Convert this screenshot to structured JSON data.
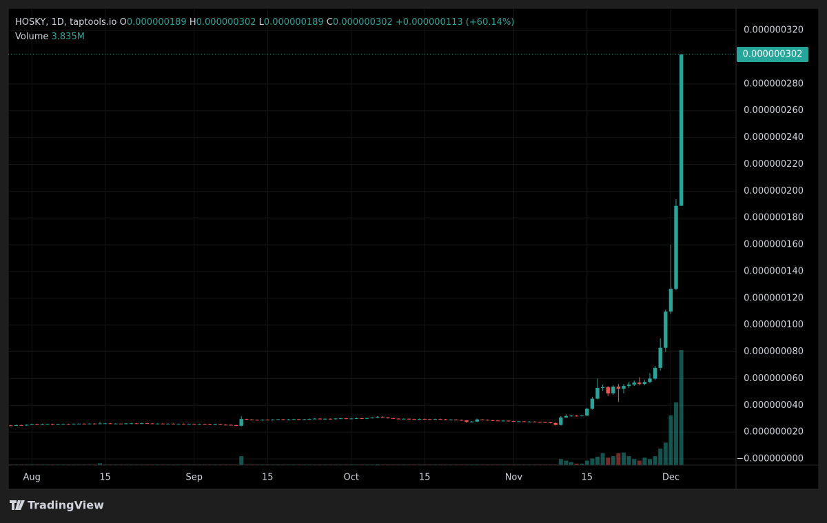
{
  "chart_data": {
    "type": "candlestick",
    "legend": {
      "symbol": "HOSKY, 1D, taptools.io",
      "o_key": "O",
      "o": "0.000000189",
      "h_key": "H",
      "h": "0.000000302",
      "l_key": "L",
      "l": "0.000000189",
      "c_key": "C",
      "c": "0.000000302",
      "change": "+0.000000113 (+60.14%)",
      "volume_key": "Volume",
      "volume": "3.835M"
    },
    "last_price_label": "0.000000302",
    "brand": "TradingView",
    "up_color": "#26a69a",
    "down_color": "#ef5350",
    "grid": true,
    "ylim": [
      -4.6e-09,
      3.365e-07
    ],
    "yticks": [
      {
        "value": 0,
        "label": "−0.000000000"
      },
      {
        "value": 2e-08,
        "label": "0.000000020"
      },
      {
        "value": 4e-08,
        "label": "0.000000040"
      },
      {
        "value": 6e-08,
        "label": "0.000000060"
      },
      {
        "value": 8e-08,
        "label": "0.000000080"
      },
      {
        "value": 1e-07,
        "label": "0.000000100"
      },
      {
        "value": 1.2e-07,
        "label": "0.000000120"
      },
      {
        "value": 1.4e-07,
        "label": "0.000000140"
      },
      {
        "value": 1.6e-07,
        "label": "0.000000160"
      },
      {
        "value": 1.8e-07,
        "label": "0.000000180"
      },
      {
        "value": 2e-07,
        "label": "0.000000200"
      },
      {
        "value": 2.2e-07,
        "label": "0.000000220"
      },
      {
        "value": 2.4e-07,
        "label": "0.000000240"
      },
      {
        "value": 2.6e-07,
        "label": "0.000000260"
      },
      {
        "value": 2.8e-07,
        "label": "0.000000280"
      },
      {
        "value": 3.2e-07,
        "label": "0.000000320"
      }
    ],
    "xticks": [
      {
        "value": "Aug 1",
        "label": "Aug"
      },
      {
        "value": "Aug 15",
        "label": "15"
      },
      {
        "value": "Sep 1",
        "label": "Sep"
      },
      {
        "value": "Sep 15",
        "label": "15"
      },
      {
        "value": "Oct 1",
        "label": "Oct"
      },
      {
        "value": "Oct 15",
        "label": "15"
      },
      {
        "value": "Nov 1",
        "label": "Nov"
      },
      {
        "value": "Nov 15",
        "label": "15"
      },
      {
        "value": "Dec 1",
        "label": "Dec"
      }
    ],
    "x": [
      "Jul 28",
      "Jul 29",
      "Jul 30",
      "Jul 31",
      "Aug 1",
      "Aug 2",
      "Aug 3",
      "Aug 4",
      "Aug 5",
      "Aug 6",
      "Aug 7",
      "Aug 8",
      "Aug 9",
      "Aug 10",
      "Aug 11",
      "Aug 12",
      "Aug 13",
      "Aug 14",
      "Aug 15",
      "Aug 16",
      "Aug 17",
      "Aug 18",
      "Aug 19",
      "Aug 20",
      "Aug 21",
      "Aug 22",
      "Aug 23",
      "Aug 24",
      "Aug 25",
      "Aug 26",
      "Aug 27",
      "Aug 28",
      "Aug 29",
      "Aug 30",
      "Aug 31",
      "Sep 1",
      "Sep 2",
      "Sep 3",
      "Sep 4",
      "Sep 5",
      "Sep 6",
      "Sep 7",
      "Sep 8",
      "Sep 9",
      "Sep 10",
      "Sep 11",
      "Sep 12",
      "Sep 13",
      "Sep 14",
      "Sep 15",
      "Sep 16",
      "Sep 17",
      "Sep 18",
      "Sep 19",
      "Sep 20",
      "Sep 21",
      "Sep 22",
      "Sep 23",
      "Sep 24",
      "Sep 25",
      "Sep 26",
      "Sep 27",
      "Sep 28",
      "Sep 29",
      "Sep 30",
      "Oct 1",
      "Oct 2",
      "Oct 3",
      "Oct 4",
      "Oct 5",
      "Oct 6",
      "Oct 7",
      "Oct 8",
      "Oct 9",
      "Oct 10",
      "Oct 11",
      "Oct 12",
      "Oct 13",
      "Oct 14",
      "Oct 15",
      "Oct 16",
      "Oct 17",
      "Oct 18",
      "Oct 19",
      "Oct 20",
      "Oct 21",
      "Oct 22",
      "Oct 23",
      "Oct 24",
      "Oct 25",
      "Oct 26",
      "Oct 27",
      "Oct 28",
      "Oct 29",
      "Oct 30",
      "Oct 31",
      "Nov 1",
      "Nov 2",
      "Nov 3",
      "Nov 4",
      "Nov 5",
      "Nov 6",
      "Nov 7",
      "Nov 8",
      "Nov 9",
      "Nov 10",
      "Nov 11",
      "Nov 12",
      "Nov 13",
      "Nov 14",
      "Nov 15",
      "Nov 16",
      "Nov 17",
      "Nov 18",
      "Nov 19",
      "Nov 20",
      "Nov 21",
      "Nov 22",
      "Nov 23",
      "Nov 24",
      "Nov 25",
      "Nov 26",
      "Nov 27",
      "Nov 28",
      "Nov 29",
      "Nov 30",
      "Dec 1",
      "Dec 2",
      "Dec 3"
    ],
    "open": [
      2.51e-08,
      2.5e-08,
      2.53e-08,
      2.52e-08,
      2.55e-08,
      2.58e-08,
      2.56e-08,
      2.59e-08,
      2.6e-08,
      2.57e-08,
      2.59e-08,
      2.61e-08,
      2.6e-08,
      2.62e-08,
      2.63e-08,
      2.61e-08,
      2.64e-08,
      2.62e-08,
      2.65e-08,
      2.66e-08,
      2.63e-08,
      2.64e-08,
      2.62e-08,
      2.65e-08,
      2.66e-08,
      2.64e-08,
      2.67e-08,
      2.65e-08,
      2.63e-08,
      2.64e-08,
      2.62e-08,
      2.63e-08,
      2.61e-08,
      2.62e-08,
      2.6e-08,
      2.61e-08,
      2.59e-08,
      2.6e-08,
      2.58e-08,
      2.57e-08,
      2.59e-08,
      2.56e-08,
      2.55e-08,
      2.53e-08,
      2.48e-08,
      2.98e-08,
      2.95e-08,
      2.92e-08,
      2.9e-08,
      2.93e-08,
      2.91e-08,
      2.94e-08,
      2.96e-08,
      2.93e-08,
      2.95e-08,
      2.97e-08,
      2.94e-08,
      2.96e-08,
      2.99e-08,
      3.01e-08,
      2.98e-08,
      3e-08,
      2.97e-08,
      3.02e-08,
      3.03e-08,
      3e-08,
      3.02e-08,
      3.04e-08,
      3.01e-08,
      3.05e-08,
      3.09e-08,
      3.15e-08,
      3.1e-08,
      3.04e-08,
      3.01e-08,
      2.99e-08,
      3e-08,
      2.98e-08,
      2.96e-08,
      2.99e-08,
      2.97e-08,
      2.95e-08,
      2.98e-08,
      2.96e-08,
      2.93e-08,
      2.94e-08,
      2.91e-08,
      2.88e-08,
      2.76e-08,
      2.79e-08,
      2.95e-08,
      2.92e-08,
      2.89e-08,
      2.87e-08,
      2.85e-08,
      2.86e-08,
      2.83e-08,
      2.8e-08,
      2.81e-08,
      2.78e-08,
      2.79e-08,
      2.76e-08,
      2.75e-08,
      2.73e-08,
      2.69e-08,
      2.54e-08,
      3.1e-08,
      3.21e-08,
      3.23e-08,
      3.2e-08,
      3.24e-08,
      3.75e-08,
      4.5e-08,
      5.3e-08,
      5.35e-08,
      4.9e-08,
      5.4e-08,
      5.25e-08,
      5.45e-08,
      5.55e-08,
      5.7e-08,
      5.6e-08,
      5.75e-08,
      6e-08,
      6.8e-08,
      8.3e-08,
      1.1e-07,
      1.27e-07,
      1.89e-07
    ],
    "high": [
      2.54e-08,
      2.56e-08,
      2.56e-08,
      2.58e-08,
      2.61e-08,
      2.61e-08,
      2.62e-08,
      2.63e-08,
      2.63e-08,
      2.62e-08,
      2.64e-08,
      2.64e-08,
      2.65e-08,
      2.66e-08,
      2.66e-08,
      2.67e-08,
      2.67e-08,
      2.76e-08,
      2.69e-08,
      2.69e-08,
      2.67e-08,
      2.67e-08,
      2.68e-08,
      2.69e-08,
      2.69e-08,
      2.7e-08,
      2.7e-08,
      2.68e-08,
      2.67e-08,
      2.67e-08,
      2.66e-08,
      2.66e-08,
      2.65e-08,
      2.65e-08,
      2.64e-08,
      2.64e-08,
      2.63e-08,
      2.63e-08,
      2.61e-08,
      2.62e-08,
      2.62e-08,
      2.59e-08,
      2.58e-08,
      2.56e-08,
      3.2e-08,
      3.01e-08,
      2.98e-08,
      2.95e-08,
      2.96e-08,
      2.96e-08,
      2.97e-08,
      2.99e-08,
      2.99e-08,
      2.98e-08,
      3e-08,
      3e-08,
      2.99e-08,
      3.02e-08,
      3.04e-08,
      3.04e-08,
      3.03e-08,
      3.03e-08,
      3.05e-08,
      3.06e-08,
      3.06e-08,
      3.05e-08,
      3.07e-08,
      3.07e-08,
      3.08e-08,
      3.12e-08,
      3.2e-08,
      3.18e-08,
      3.13e-08,
      3.07e-08,
      3.04e-08,
      3.03e-08,
      3.03e-08,
      3.01e-08,
      3.02e-08,
      3.02e-08,
      3e-08,
      3.01e-08,
      3.01e-08,
      2.99e-08,
      2.97e-08,
      2.97e-08,
      2.94e-08,
      2.91e-08,
      2.84e-08,
      3.02e-08,
      2.98e-08,
      2.95e-08,
      2.92e-08,
      2.9e-08,
      2.89e-08,
      2.89e-08,
      2.86e-08,
      2.84e-08,
      2.84e-08,
      2.82e-08,
      2.82e-08,
      2.79e-08,
      2.78e-08,
      2.76e-08,
      2.72e-08,
      3.2e-08,
      3.35e-08,
      3.3e-08,
      3.28e-08,
      3.29e-08,
      3.82e-08,
      4.65e-08,
      6e-08,
      5.55e-08,
      5.45e-08,
      5.5e-08,
      5.6e-08,
      5.6e-08,
      5.75e-08,
      5.85e-08,
      6.1e-08,
      5.9e-08,
      6.4e-08,
      6.95e-08,
      9e-08,
      1.115e-07,
      1.6e-07,
      1.94e-07,
      3.02e-07
    ],
    "low": [
      2.47e-08,
      2.47e-08,
      2.49e-08,
      2.49e-08,
      2.52e-08,
      2.53e-08,
      2.53e-08,
      2.56e-08,
      2.54e-08,
      2.54e-08,
      2.56e-08,
      2.57e-08,
      2.57e-08,
      2.59e-08,
      2.58e-08,
      2.58e-08,
      2.59e-08,
      2.59e-08,
      2.62e-08,
      2.6e-08,
      2.6e-08,
      2.59e-08,
      2.59e-08,
      2.62e-08,
      2.61e-08,
      2.61e-08,
      2.62e-08,
      2.6e-08,
      2.6e-08,
      2.59e-08,
      2.59e-08,
      2.58e-08,
      2.58e-08,
      2.57e-08,
      2.57e-08,
      2.56e-08,
      2.56e-08,
      2.55e-08,
      2.54e-08,
      2.54e-08,
      2.53e-08,
      2.52e-08,
      2.5e-08,
      2.45e-08,
      2.43e-08,
      2.92e-08,
      2.89e-08,
      2.87e-08,
      2.87e-08,
      2.88e-08,
      2.88e-08,
      2.91e-08,
      2.9e-08,
      2.9e-08,
      2.92e-08,
      2.91e-08,
      2.91e-08,
      2.93e-08,
      2.96e-08,
      2.95e-08,
      2.95e-08,
      2.94e-08,
      2.94e-08,
      2.99e-08,
      2.97e-08,
      2.97e-08,
      2.99e-08,
      2.98e-08,
      2.98e-08,
      3.02e-08,
      3.06e-08,
      3.07e-08,
      3.01e-08,
      2.98e-08,
      2.96e-08,
      2.96e-08,
      2.95e-08,
      2.93e-08,
      2.93e-08,
      2.94e-08,
      2.92e-08,
      2.92e-08,
      2.93e-08,
      2.9e-08,
      2.9e-08,
      2.88e-08,
      2.85e-08,
      2.7e-08,
      2.72e-08,
      2.76e-08,
      2.89e-08,
      2.86e-08,
      2.84e-08,
      2.82e-08,
      2.82e-08,
      2.8e-08,
      2.77e-08,
      2.77e-08,
      2.75e-08,
      2.75e-08,
      2.73e-08,
      2.72e-08,
      2.7e-08,
      2.66e-08,
      2.5e-08,
      2.5e-08,
      3.06e-08,
      3.17e-08,
      3.16e-08,
      3.16e-08,
      3.2e-08,
      3.7e-08,
      4.45e-08,
      5.1e-08,
      4.7e-08,
      4.8e-08,
      4.25e-08,
      4.9e-08,
      5.3e-08,
      5.45e-08,
      5.5e-08,
      5.5e-08,
      5.65e-08,
      5.9e-08,
      6.6e-08,
      8e-08,
      1.08e-07,
      1.26e-07,
      1.89e-07
    ],
    "close": [
      2.5e-08,
      2.53e-08,
      2.52e-08,
      2.55e-08,
      2.58e-08,
      2.56e-08,
      2.59e-08,
      2.6e-08,
      2.57e-08,
      2.59e-08,
      2.61e-08,
      2.6e-08,
      2.62e-08,
      2.63e-08,
      2.61e-08,
      2.64e-08,
      2.62e-08,
      2.65e-08,
      2.66e-08,
      2.63e-08,
      2.64e-08,
      2.62e-08,
      2.65e-08,
      2.66e-08,
      2.64e-08,
      2.67e-08,
      2.65e-08,
      2.63e-08,
      2.64e-08,
      2.62e-08,
      2.63e-08,
      2.61e-08,
      2.62e-08,
      2.6e-08,
      2.61e-08,
      2.59e-08,
      2.6e-08,
      2.58e-08,
      2.57e-08,
      2.59e-08,
      2.56e-08,
      2.55e-08,
      2.53e-08,
      2.48e-08,
      2.98e-08,
      2.95e-08,
      2.92e-08,
      2.9e-08,
      2.93e-08,
      2.91e-08,
      2.94e-08,
      2.96e-08,
      2.93e-08,
      2.95e-08,
      2.97e-08,
      2.94e-08,
      2.96e-08,
      2.99e-08,
      3.01e-08,
      2.98e-08,
      3e-08,
      2.97e-08,
      3.02e-08,
      3.03e-08,
      3e-08,
      3.02e-08,
      3.04e-08,
      3.01e-08,
      3.05e-08,
      3.09e-08,
      3.15e-08,
      3.1e-08,
      3.04e-08,
      3.01e-08,
      2.99e-08,
      3e-08,
      2.98e-08,
      2.96e-08,
      2.99e-08,
      2.97e-08,
      2.95e-08,
      2.98e-08,
      2.96e-08,
      2.93e-08,
      2.94e-08,
      2.91e-08,
      2.88e-08,
      2.76e-08,
      2.79e-08,
      2.95e-08,
      2.92e-08,
      2.89e-08,
      2.87e-08,
      2.85e-08,
      2.86e-08,
      2.83e-08,
      2.8e-08,
      2.81e-08,
      2.78e-08,
      2.79e-08,
      2.76e-08,
      2.75e-08,
      2.73e-08,
      2.69e-08,
      2.54e-08,
      3.1e-08,
      3.21e-08,
      3.23e-08,
      3.2e-08,
      3.24e-08,
      3.75e-08,
      4.5e-08,
      5.3e-08,
      5.35e-08,
      4.9e-08,
      5.4e-08,
      5.25e-08,
      5.45e-08,
      5.55e-08,
      5.7e-08,
      5.6e-08,
      5.75e-08,
      6e-08,
      6.8e-08,
      8.3e-08,
      1.1e-07,
      1.27e-07,
      1.89e-07,
      3.02e-07
    ],
    "volume": [
      20000,
      20000,
      20000,
      20000,
      20000,
      20000,
      20000,
      20000,
      20000,
      20000,
      20000,
      20000,
      20000,
      20000,
      20000,
      20000,
      20000,
      60000,
      20000,
      20000,
      20000,
      20000,
      20000,
      20000,
      20000,
      20000,
      20000,
      20000,
      20000,
      20000,
      20000,
      20000,
      20000,
      20000,
      20000,
      20000,
      20000,
      20000,
      20000,
      20000,
      20000,
      20000,
      20000,
      20000,
      300000,
      20000,
      20000,
      20000,
      20000,
      20000,
      20000,
      20000,
      20000,
      20000,
      20000,
      20000,
      20000,
      20000,
      20000,
      20000,
      20000,
      20000,
      20000,
      20000,
      20000,
      20000,
      20000,
      20000,
      20000,
      20000,
      30000,
      20000,
      20000,
      20000,
      20000,
      20000,
      20000,
      20000,
      20000,
      20000,
      20000,
      20000,
      20000,
      20000,
      20000,
      20000,
      20000,
      20000,
      20000,
      20000,
      20000,
      20000,
      20000,
      20000,
      20000,
      20000,
      20000,
      20000,
      20000,
      20000,
      20000,
      20000,
      20000,
      20000,
      20000,
      200000,
      150000,
      100000,
      50000,
      50000,
      150000,
      220000,
      280000,
      400000,
      250000,
      300000,
      400000,
      420000,
      300000,
      200000,
      150000,
      250000,
      200000,
      300000,
      550000,
      750000,
      1660000,
      2090000,
      3835000
    ]
  }
}
